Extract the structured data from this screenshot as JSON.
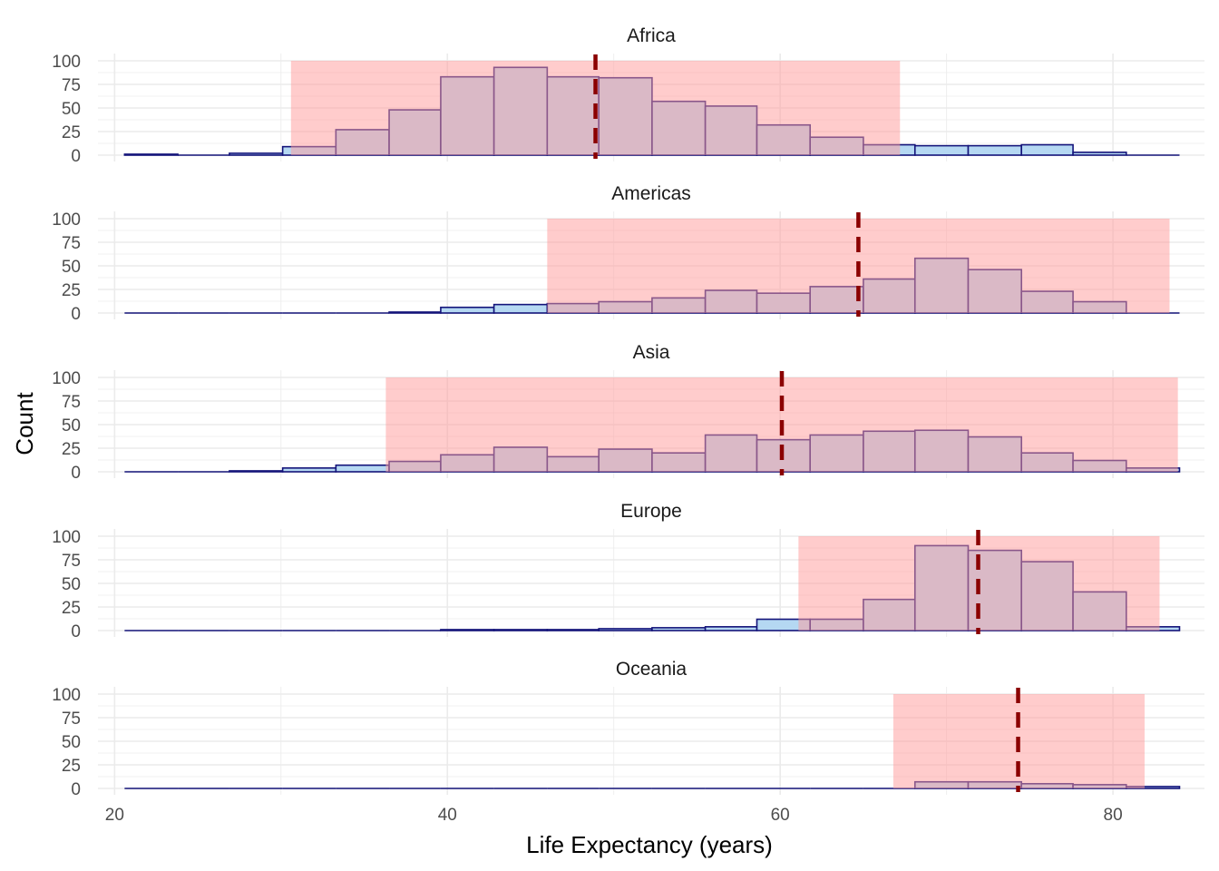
{
  "chart_data": {
    "type": "bar",
    "layout": "faceted-histogram",
    "xlabel": "Life Expectancy (years)",
    "ylabel": "Count",
    "xlim": [
      19.0,
      85.5
    ],
    "ylim": [
      0,
      100
    ],
    "x_ticks": [
      20,
      40,
      60,
      80
    ],
    "y_ticks": [
      0,
      25,
      50,
      75,
      100
    ],
    "bin_edges": [
      20.6,
      23.8,
      26.9,
      30.1,
      33.3,
      36.5,
      39.6,
      42.8,
      46.0,
      49.1,
      52.3,
      55.5,
      58.6,
      61.8,
      65.0,
      68.1,
      71.3,
      74.5,
      77.6,
      80.8,
      84.0
    ],
    "colors": {
      "bar_fill": "#b5d8f2",
      "bar_outline": "#14147a",
      "band_fill": "#ff9999",
      "band_opacity": 0.5,
      "mean_line": "#8b0000",
      "grid": "#ebebeb"
    },
    "grid": true,
    "facets": [
      {
        "title": "Africa",
        "counts": [
          1,
          0,
          2,
          9,
          27,
          48,
          83,
          93,
          83,
          82,
          57,
          52,
          32,
          19,
          11,
          10,
          10,
          11,
          3,
          0
        ],
        "mean": 48.9,
        "band": [
          30.6,
          67.2
        ]
      },
      {
        "title": "Americas",
        "counts": [
          0,
          0,
          0,
          0,
          0,
          1,
          6,
          9,
          10,
          12,
          16,
          24,
          21,
          28,
          36,
          58,
          46,
          23,
          12,
          0
        ],
        "mean": 64.7,
        "band": [
          46.0,
          83.4
        ]
      },
      {
        "title": "Asia",
        "counts": [
          0,
          0,
          1,
          4,
          7,
          11,
          18,
          26,
          16,
          24,
          20,
          39,
          34,
          39,
          43,
          44,
          37,
          20,
          12,
          4
        ],
        "mean": 60.1,
        "band": [
          36.3,
          83.9
        ]
      },
      {
        "title": "Europe",
        "counts": [
          0,
          0,
          0,
          0,
          0,
          0,
          1,
          1,
          1,
          2,
          3,
          4,
          12,
          12,
          33,
          90,
          85,
          73,
          41,
          4
        ],
        "mean": 71.9,
        "band": [
          61.1,
          82.8
        ]
      },
      {
        "title": "Oceania",
        "counts": [
          0,
          0,
          0,
          0,
          0,
          0,
          0,
          0,
          0,
          0,
          0,
          0,
          0,
          0,
          0,
          7,
          7,
          5,
          4,
          2
        ],
        "mean": 74.3,
        "band": [
          66.8,
          81.9
        ]
      }
    ]
  }
}
